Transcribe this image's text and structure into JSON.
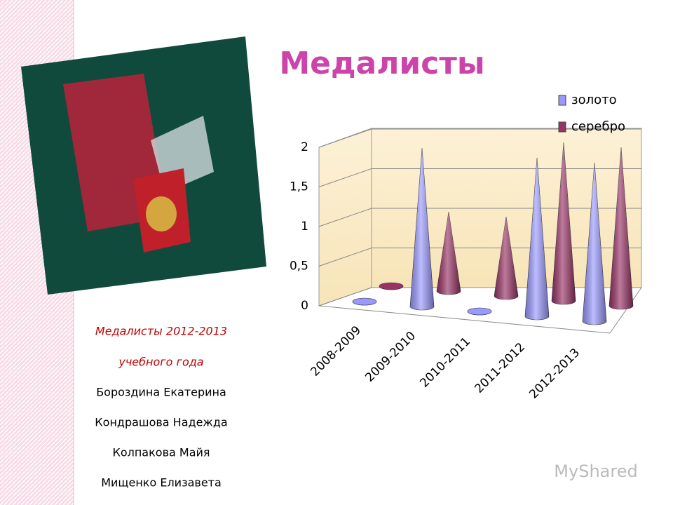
{
  "chart_data": {
    "type": "bar3d-cone",
    "title": "Медалисты",
    "categories": [
      "2008-2009",
      "2009-2010",
      "2010-2011",
      "2011-2012",
      "2012-2013"
    ],
    "series": [
      {
        "name": "золото",
        "color": "#9999ff",
        "values": [
          0,
          2,
          0,
          2,
          2
        ]
      },
      {
        "name": "серебро",
        "color": "#993366",
        "values": [
          0,
          1,
          1,
          2,
          2
        ]
      }
    ],
    "ylim": [
      0,
      2
    ],
    "yticks": [
      0,
      {
        "value": 0.5,
        "label": "0,5"
      },
      1,
      {
        "value": 1.5,
        "label": "1,5"
      },
      2
    ],
    "grid": true,
    "legend": "top-right"
  },
  "caption": [
    "Медалисты 2012-2013",
    "учебного года"
  ],
  "names": [
    "Бороздина Екатерина",
    "Кондрашова Надежда",
    "Колпакова Майя",
    "Мищенко Елизавета"
  ],
  "watermark": "MyShared"
}
